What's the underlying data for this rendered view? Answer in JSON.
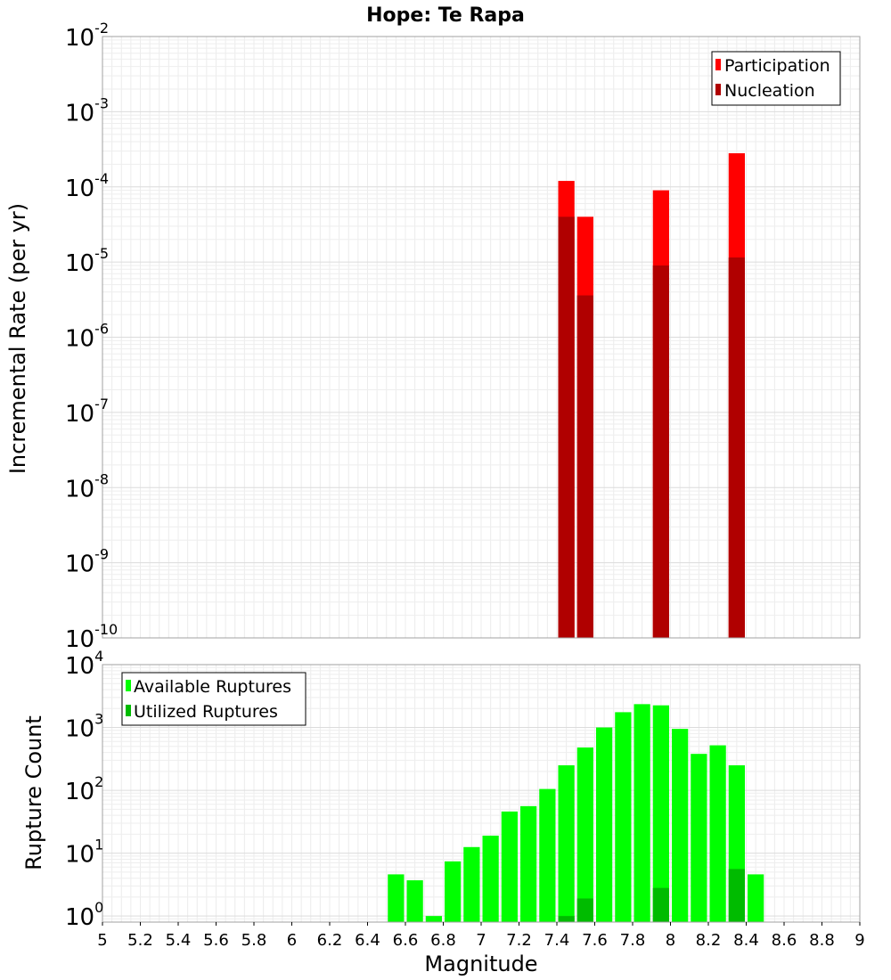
{
  "chart_data": [
    {
      "type": "bar",
      "title": "Hope: Te Rapa",
      "ylabel": "Incremental Rate (per yr)",
      "yscale": "log",
      "ylim": [
        1e-10,
        0.01
      ],
      "xlim": [
        5,
        9
      ],
      "grid": true,
      "legend_position": "top-right",
      "y_ticks": [
        {
          "base": "10",
          "exp": "-10"
        },
        {
          "base": "10",
          "exp": "-9"
        },
        {
          "base": "10",
          "exp": "-8"
        },
        {
          "base": "10",
          "exp": "-7"
        },
        {
          "base": "10",
          "exp": "-6"
        },
        {
          "base": "10",
          "exp": "-5"
        },
        {
          "base": "10",
          "exp": "-4"
        },
        {
          "base": "10",
          "exp": "-3"
        },
        {
          "base": "10",
          "exp": "-2"
        }
      ],
      "bin_width": 0.1,
      "series": [
        {
          "name": "Participation",
          "color": "#ff0000",
          "x": [
            7.45,
            7.55,
            7.95,
            8.35
          ],
          "values": [
            0.00012,
            4e-05,
            9e-05,
            0.00028
          ]
        },
        {
          "name": "Nucleation",
          "color": "#b00000",
          "x": [
            7.45,
            7.55,
            7.95,
            8.35
          ],
          "values": [
            4e-05,
            3.6e-06,
            9e-06,
            1.15e-05
          ]
        }
      ]
    },
    {
      "type": "bar",
      "title": "",
      "xlabel": "Magnitude",
      "ylabel": "Rupture Count",
      "yscale": "log",
      "ylim": [
        0.8,
        10000
      ],
      "xlim": [
        5,
        9
      ],
      "grid": true,
      "legend_position": "top-left",
      "x_ticks": [
        "5",
        "5.2",
        "5.4",
        "5.6",
        "5.8",
        "6",
        "6.2",
        "6.4",
        "6.6",
        "6.8",
        "7",
        "7.2",
        "7.4",
        "7.6",
        "7.8",
        "8",
        "8.2",
        "8.4",
        "8.6",
        "8.8",
        "9"
      ],
      "y_ticks": [
        {
          "base": "10",
          "exp": "0"
        },
        {
          "base": "10",
          "exp": "1"
        },
        {
          "base": "10",
          "exp": "2"
        },
        {
          "base": "10",
          "exp": "3"
        },
        {
          "base": "10",
          "exp": "4"
        }
      ],
      "bin_width": 0.1,
      "series": [
        {
          "name": "Available Ruptures",
          "color": "#00ff00",
          "x": [
            6.55,
            6.65,
            6.75,
            6.85,
            6.95,
            7.05,
            7.15,
            7.25,
            7.35,
            7.45,
            7.55,
            7.65,
            7.75,
            7.85,
            7.95,
            8.05,
            8.15,
            8.25,
            8.35,
            8.45
          ],
          "values": [
            4.6,
            3.7,
            1.0,
            7.4,
            12.5,
            19,
            46,
            56,
            105,
            250,
            480,
            1000,
            1750,
            2350,
            2250,
            950,
            380,
            520,
            250,
            4.6
          ]
        },
        {
          "name": "Utilized Ruptures",
          "color": "#00bb00",
          "x": [
            7.45,
            7.55,
            7.95,
            8.35
          ],
          "values": [
            1.0,
            1.9,
            2.8,
            5.6
          ]
        }
      ]
    }
  ]
}
